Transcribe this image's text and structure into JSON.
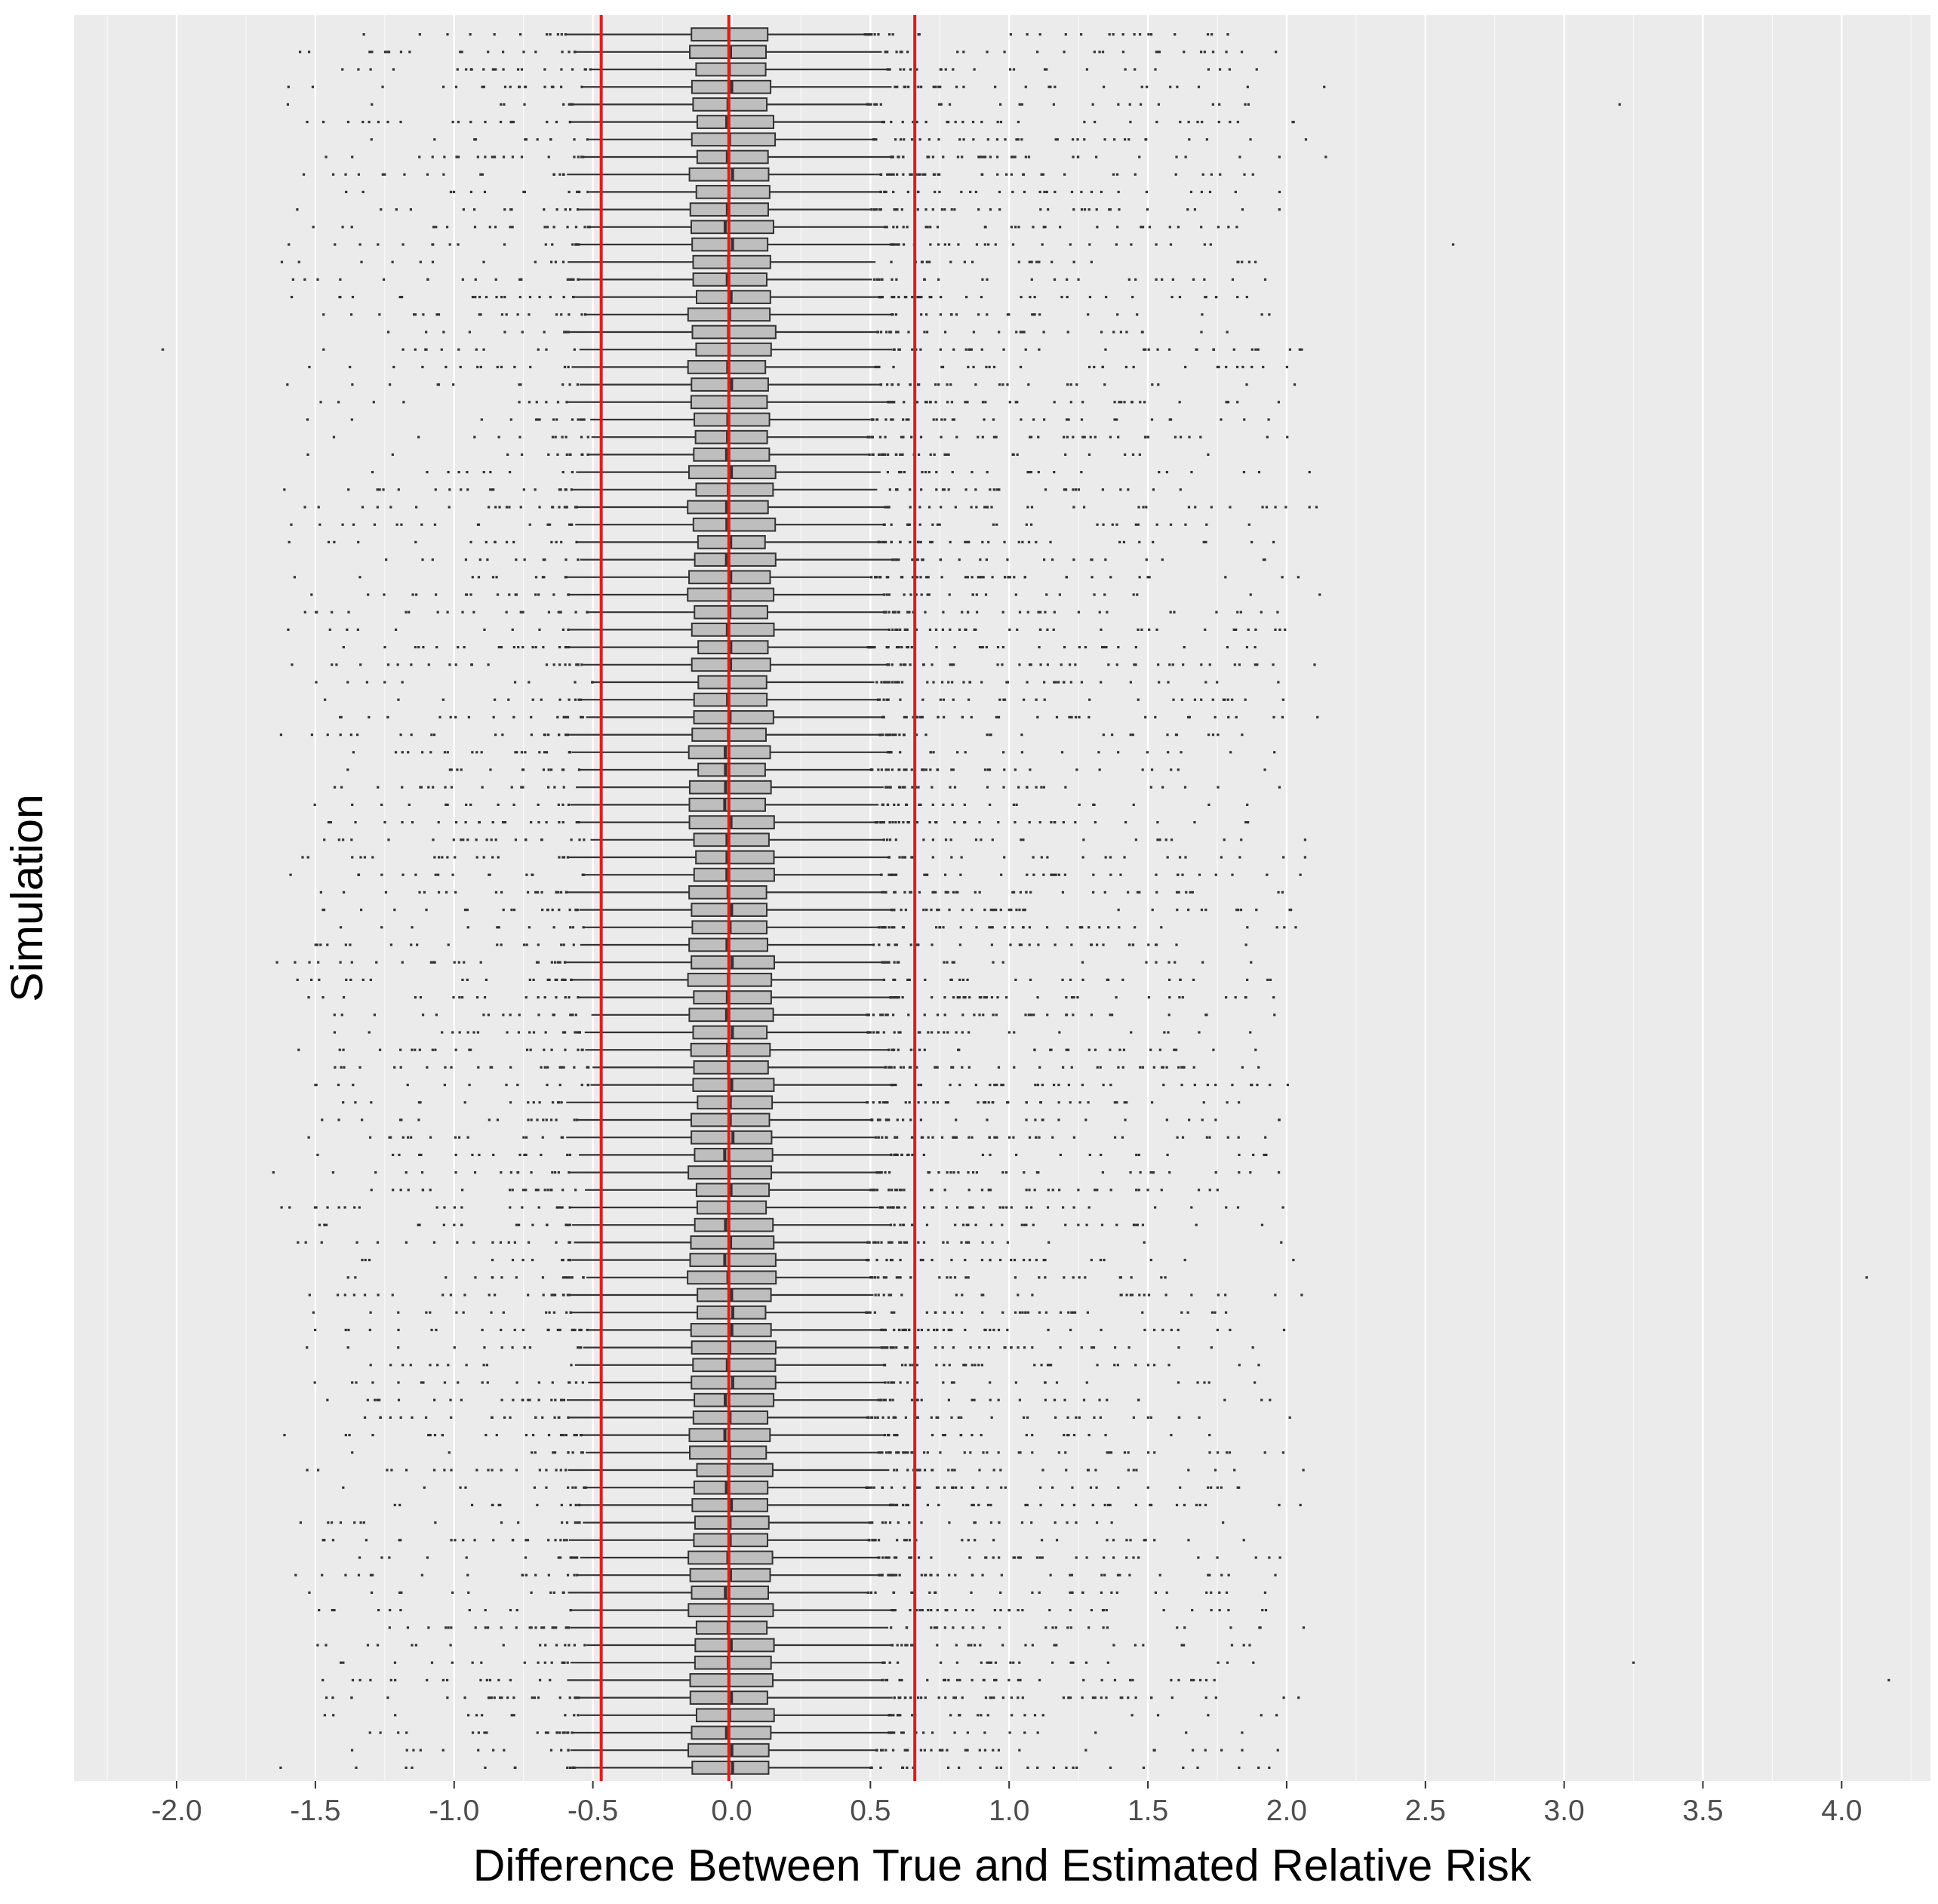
{
  "chart_data": {
    "type": "boxplot",
    "orientation": "horizontal",
    "xlabel": "Difference Between True and Estimated Relative Risk",
    "ylabel": "Simulation",
    "xlim": [
      -2.37,
      4.32
    ],
    "x_ticks": [
      -2.0,
      -1.5,
      -1.0,
      -0.5,
      0.0,
      0.5,
      1.0,
      1.5,
      2.0,
      2.5,
      3.0,
      3.5,
      4.0
    ],
    "x_tick_labels": [
      "-2.0",
      "-1.5",
      "-1.0",
      "-0.5",
      "0.0",
      "0.5",
      "1.0",
      "1.5",
      "2.0",
      "2.5",
      "3.0",
      "3.5",
      "4.0"
    ],
    "y_tick_labels": "none",
    "n_simulations": 100,
    "boxplot_summary": {
      "median_approx": -0.01,
      "q1_approx": -0.14,
      "q3_approx": 0.14,
      "lower_whisker_approx": -0.55,
      "upper_whisker_approx": 0.53,
      "outlier_range_approx": [
        -2.05,
        4.17
      ]
    },
    "notable_outliers": [
      {
        "simulation": 18,
        "x": -2.05
      },
      {
        "simulation": 12,
        "x": 2.6
      },
      {
        "simulation": 71,
        "x": 4.09
      },
      {
        "simulation": 94,
        "x": 4.17
      },
      {
        "simulation": 93,
        "x": 3.25
      },
      {
        "simulation": 4,
        "x": 3.2
      }
    ],
    "reference_lines": [
      {
        "x": -0.47,
        "color": "#e31a1c"
      },
      {
        "x": -0.01,
        "color": "#e31a1c"
      },
      {
        "x": 0.66,
        "color": "#e31a1c"
      }
    ],
    "grid": true,
    "legend": "none",
    "colors": {
      "panel_background": "#ebebeb",
      "grid_major": "#ffffff",
      "box_fill": "#bebebe",
      "box_outline": "#333333",
      "outlier": "#333333",
      "reference_line": "#e31a1c"
    }
  }
}
